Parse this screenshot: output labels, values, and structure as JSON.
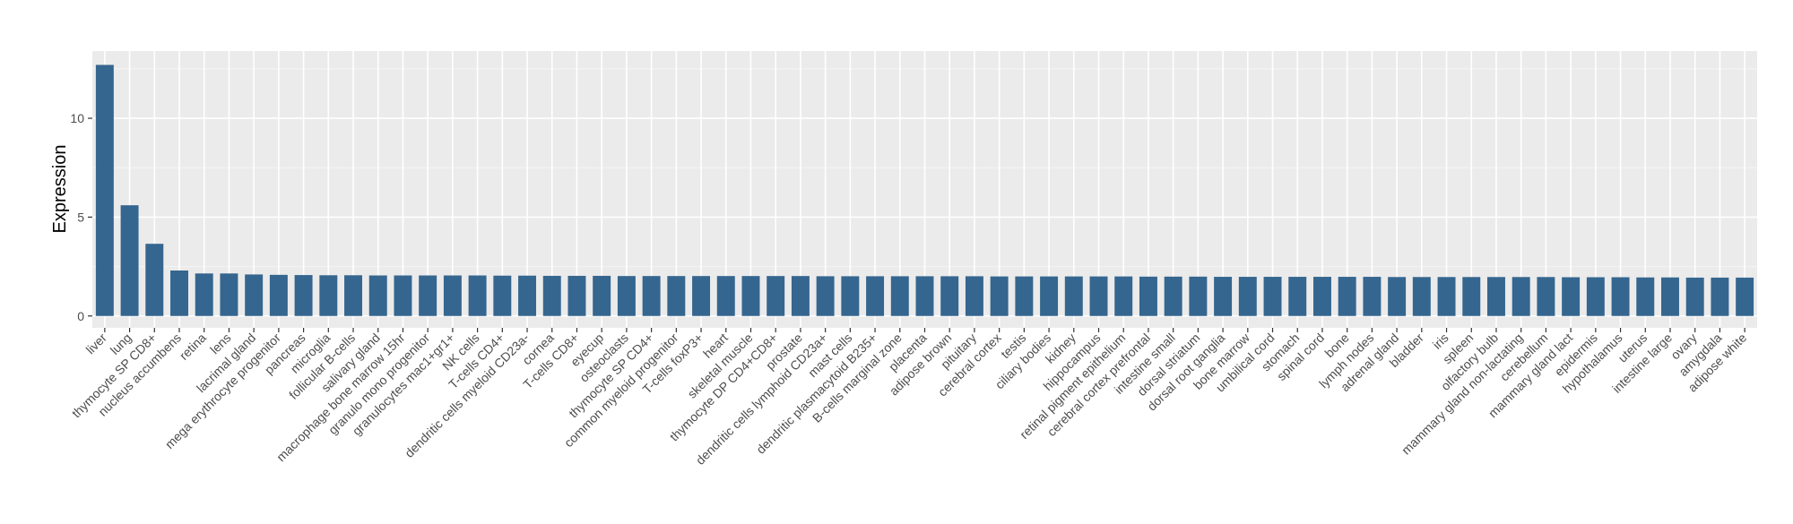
{
  "chart_data": {
    "type": "bar",
    "xlabel": "",
    "ylabel": "Expression",
    "ylim": [
      -0.6,
      13.4
    ],
    "yticks": [
      0,
      5,
      10
    ],
    "grid": true,
    "legend": "none",
    "bar_color": "#35668F",
    "panel_color": "#EBEBEB",
    "categories": [
      "liver",
      "lung",
      "thymocyte SP CD8+",
      "nucleus accumbens",
      "retina",
      "lens",
      "lacrimal gland",
      "mega erythrocyte progenitor",
      "pancreas",
      "microglia",
      "follicular B-cells",
      "salivary gland",
      "macrophage bone marrow 15hr",
      "granulo mono progenitor",
      "granulocytes mac1+gr1+",
      "NK cells",
      "T-cells CD4+",
      "dendritic cells myeloid CD23a-",
      "cornea",
      "T-cells CD8+",
      "eyecup",
      "osteoclasts",
      "thymocyte SP CD4+",
      "common myeloid progenitor",
      "T-cells foxP3+",
      "heart",
      "skeletal muscle",
      "thymocyte DP CD4+CD8+",
      "prostate",
      "dendritic cells lymphoid CD23a+",
      "mast cells",
      "dendritic plasmacytoid B235+",
      "B-cells marginal zone",
      "placenta",
      "adipose brown",
      "pituitary",
      "cerebral cortex",
      "testis",
      "ciliary bodies",
      "kidney",
      "hippocampus",
      "retinal pigment epithelium",
      "cerebral cortex prefrontal",
      "intestine small",
      "dorsal striatum",
      "dorsal root ganglia",
      "bone marrow",
      "umbilical cord",
      "stomach",
      "spinal cord",
      "bone",
      "lymph nodes",
      "adrenal gland",
      "bladder",
      "iris",
      "spleen",
      "olfactory bulb",
      "mammary gland non-lactating",
      "cerebellum",
      "mammary gland  lact",
      "epidermis",
      "hypothalamus",
      "uterus",
      "intestine large",
      "ovary",
      "amygdala",
      "adipose white"
    ],
    "values": [
      12.7,
      5.6,
      3.65,
      2.3,
      2.15,
      2.15,
      2.1,
      2.08,
      2.07,
      2.06,
      2.06,
      2.05,
      2.05,
      2.05,
      2.05,
      2.05,
      2.04,
      2.04,
      2.03,
      2.03,
      2.03,
      2.02,
      2.02,
      2.02,
      2.02,
      2.02,
      2.02,
      2.02,
      2.02,
      2.01,
      2.01,
      2.01,
      2.01,
      2.01,
      2.01,
      2.01,
      2.0,
      2.0,
      2.0,
      2.0,
      2.0,
      2.0,
      1.99,
      1.99,
      1.99,
      1.98,
      1.98,
      1.98,
      1.98,
      1.98,
      1.98,
      1.98,
      1.97,
      1.97,
      1.97,
      1.97,
      1.97,
      1.97,
      1.97,
      1.96,
      1.96,
      1.96,
      1.95,
      1.95,
      1.94,
      1.94,
      1.94
    ]
  }
}
